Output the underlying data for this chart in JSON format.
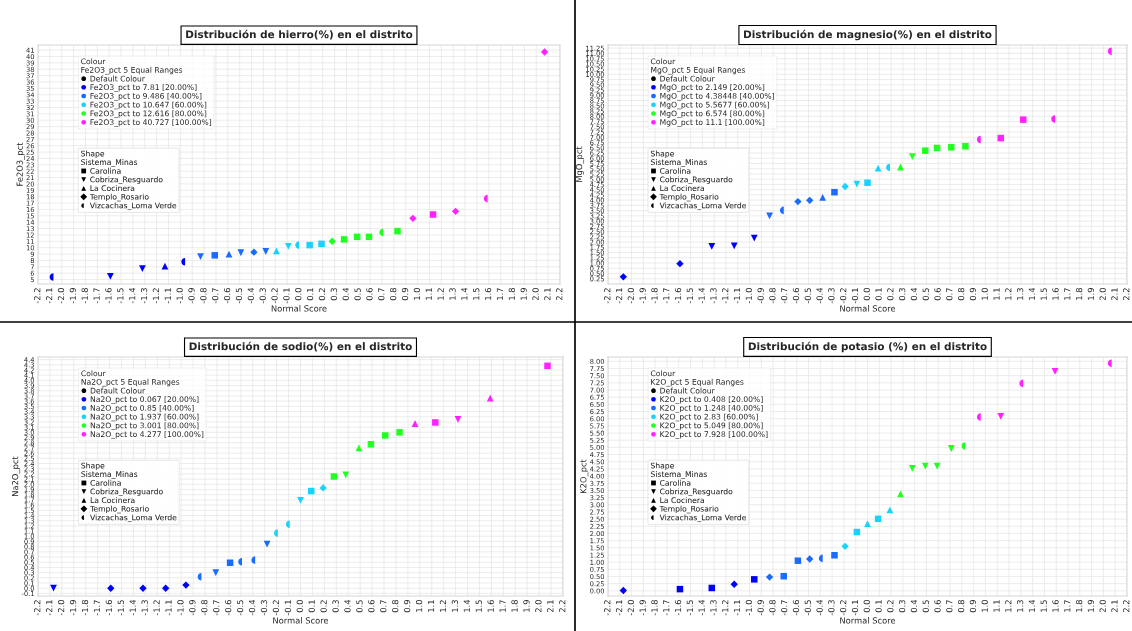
{
  "chart_data": [
    {
      "type": "scatter",
      "title": "Distribución de hierro(%) en el distrito",
      "xlabel": "Normal Score",
      "ylabel": "Fe2O3_pct",
      "annotations": [
        "Colour",
        "Fe2O3_pct 5 Equal Ranges",
        "Default Colour",
        "Shape",
        "Sistema_Minas",
        "Carolina",
        "Cobriza_Resguardo",
        "La Cocinera",
        "Templo_Rosario",
        "Vizcachas_Loma Verde"
      ],
      "xlim": [
        -2.2,
        2.2
      ],
      "xticks": [
        -2.2,
        -2.1,
        {
          "value": -2,
          "label": "-2.0"
        },
        -1.9,
        -1.8,
        -1.7,
        -1.6,
        -1.5,
        -1.4,
        -1.3,
        -1.2,
        -1.1,
        {
          "value": -1,
          "label": "-1.0"
        },
        -0.9,
        -0.8,
        -0.7,
        -0.6,
        -0.5,
        -0.4,
        -0.3,
        -0.2,
        -0.1,
        {
          "value": 0,
          "label": "0.0"
        },
        0.1,
        0.2,
        0.3,
        0.4,
        0.5,
        0.6,
        0.7,
        0.8,
        0.9,
        {
          "value": 1,
          "label": "1.0"
        },
        1.1,
        1.2,
        1.3,
        1.4,
        1.5,
        1.6,
        1.7,
        1.8,
        1.9,
        {
          "value": 2,
          "label": "2.0"
        },
        2.1,
        2.2
      ],
      "ylim": [
        4.3,
        41.8
      ],
      "yticks": [
        5,
        6,
        7,
        8,
        9,
        10,
        11,
        12,
        13,
        14,
        15,
        16,
        17,
        18,
        19,
        20,
        21,
        22,
        23,
        24,
        25,
        26,
        27,
        28,
        29,
        30,
        31,
        32,
        33,
        34,
        35,
        36,
        37,
        38,
        39,
        40,
        41
      ],
      "grid": true,
      "legend": "top left",
      "series": [
        {
          "name": "Fe2O3_pct to 7.81 [20.00%]",
          "color": "#0000ff",
          "marker": "triangle_down",
          "x": [
            -1.59,
            -1.32
          ],
          "values": [
            5.5,
            6.7
          ]
        },
        {
          "color": "#0000ff",
          "marker": "triangle",
          "x": [
            -1.13
          ],
          "values": [
            7.1
          ]
        },
        {
          "color": "#0000ff",
          "marker": "half_circle",
          "x": [
            -2.07,
            -0.96
          ],
          "values": [
            5.4,
            7.8
          ]
        },
        {
          "name": "Fe2O3_pct to 9.486 [40.00%]",
          "color": "#1a6cff",
          "marker": "square",
          "x": [
            -0.71
          ],
          "values": [
            8.8
          ]
        },
        {
          "color": "#1a6cff",
          "marker": "triangle_down",
          "x": [
            -0.83,
            -0.49,
            -0.28
          ],
          "values": [
            8.6,
            9.2,
            9.4
          ]
        },
        {
          "color": "#1a6cff",
          "marker": "triangle",
          "x": [
            -0.59
          ],
          "values": [
            9.0
          ]
        },
        {
          "color": "#1a6cff",
          "marker": "diamond",
          "x": [
            -0.38
          ],
          "values": [
            9.3
          ]
        },
        {
          "name": "Fe2O3_pct to 10.647 [60.00%]",
          "color": "#19d3ff",
          "marker": "square",
          "x": [
            0.09,
            0.19
          ],
          "values": [
            10.4,
            10.6
          ]
        },
        {
          "color": "#19d3ff",
          "marker": "triangle_down",
          "x": [
            -0.09
          ],
          "values": [
            10.2
          ]
        },
        {
          "color": "#19d3ff",
          "marker": "triangle",
          "x": [
            -0.19
          ],
          "values": [
            9.5
          ]
        },
        {
          "color": "#19d3ff",
          "marker": "half_circle",
          "x": [
            0.0
          ],
          "values": [
            10.4
          ]
        },
        {
          "name": "Fe2O3_pct to 12.616 [80.00%]",
          "color": "#22ff22",
          "marker": "square",
          "x": [
            0.38,
            0.49,
            0.59,
            0.83
          ],
          "values": [
            11.3,
            11.7,
            11.7,
            12.6
          ]
        },
        {
          "color": "#22ff22",
          "marker": "diamond",
          "x": [
            0.28
          ],
          "values": [
            11.0
          ]
        },
        {
          "color": "#22ff22",
          "marker": "half_circle",
          "x": [
            0.71
          ],
          "values": [
            12.4
          ]
        },
        {
          "name": "Fe2O3_pct to 40.727 [100.00%]",
          "color": "#ff22ff",
          "marker": "square",
          "x": [
            1.13
          ],
          "values": [
            15.2
          ]
        },
        {
          "color": "#ff22ff",
          "marker": "diamond",
          "x": [
            0.96,
            1.32,
            2.07
          ],
          "values": [
            14.6,
            15.7,
            40.7
          ]
        },
        {
          "color": "#ff22ff",
          "marker": "half_circle",
          "x": [
            1.59
          ],
          "values": [
            17.7
          ]
        }
      ]
    },
    {
      "type": "scatter",
      "title": "Distribución de magnesio(%) en el distrito",
      "xlabel": "Normal Score",
      "ylabel": "MgO_pct",
      "annotations": [
        "Colour",
        "MgO_pct 5 Equal Ranges",
        "Default Colour",
        "Shape",
        "Sistema_Minas",
        "Carolina",
        "Cobriza_Resguardo",
        "La Cocinera",
        "Templo_Rosario",
        "Vizcachas_Loma Verde"
      ],
      "xlim": [
        -2.2,
        2.2
      ],
      "xticks": [
        -2.2,
        -2.1,
        {
          "value": -2,
          "label": "-2.0"
        },
        -1.9,
        -1.8,
        -1.7,
        -1.6,
        -1.5,
        -1.4,
        -1.3,
        -1.2,
        -1.1,
        {
          "value": -1,
          "label": "-1.0"
        },
        -0.9,
        -0.8,
        -0.7,
        -0.6,
        -0.5,
        -0.4,
        -0.3,
        -0.2,
        -0.1,
        {
          "value": 0,
          "label": "0.0"
        },
        0.1,
        0.2,
        0.3,
        0.4,
        0.5,
        0.6,
        0.7,
        0.8,
        0.9,
        {
          "value": 1,
          "label": "1.0"
        },
        1.1,
        1.2,
        1.3,
        1.4,
        1.5,
        1.6,
        1.7,
        1.8,
        1.9,
        {
          "value": 2,
          "label": "2.0"
        },
        2.1,
        2.2
      ],
      "ylim": [
        0.0,
        11.4
      ],
      "yticks": [
        0.25,
        {
          "value": 0.5,
          "label": "0.50"
        },
        0.75,
        {
          "value": 1,
          "label": "1.00"
        },
        1.25,
        {
          "value": 1.5,
          "label": "1.50"
        },
        1.75,
        {
          "value": 2,
          "label": "2.00"
        },
        2.25,
        {
          "value": 2.5,
          "label": "2.50"
        },
        2.75,
        {
          "value": 3,
          "label": "3.00"
        },
        3.25,
        {
          "value": 3.5,
          "label": "3.50"
        },
        3.75,
        {
          "value": 4,
          "label": "4.00"
        },
        4.25,
        {
          "value": 4.5,
          "label": "4.50"
        },
        4.75,
        {
          "value": 5,
          "label": "5.00"
        },
        5.25,
        {
          "value": 5.5,
          "label": "5.50"
        },
        5.75,
        {
          "value": 6,
          "label": "6.00"
        },
        6.25,
        {
          "value": 6.5,
          "label": "6.50"
        },
        6.75,
        {
          "value": 7,
          "label": "7.00"
        },
        7.25,
        {
          "value": 7.5,
          "label": "7.50"
        },
        7.75,
        {
          "value": 8,
          "label": "8.00"
        },
        8.25,
        {
          "value": 8.5,
          "label": "8.50"
        },
        8.75,
        {
          "value": 9,
          "label": "9.00"
        },
        9.25,
        {
          "value": 9.5,
          "label": "9.50"
        },
        9.75,
        {
          "value": 10,
          "label": "10.00"
        },
        10.25,
        {
          "value": 10.5,
          "label": "10.50"
        },
        10.75,
        {
          "value": 11,
          "label": "11.00"
        },
        11.25
      ],
      "grid": true,
      "legend": "top left",
      "series": [
        {
          "name": "MgO_pct to 2.149 [20.00%]",
          "color": "#0000ff",
          "marker": "triangle_down",
          "x": [
            -1.32,
            -1.13,
            -0.96
          ],
          "values": [
            1.79,
            1.82,
            2.19
          ]
        },
        {
          "color": "#0000ff",
          "marker": "diamond",
          "x": [
            -2.07,
            -1.59
          ],
          "values": [
            0.34,
            0.97
          ]
        },
        {
          "name": "MgO_pct to 4.38448 [40.00%]",
          "color": "#1a6cff",
          "marker": "square",
          "x": [
            -0.28
          ],
          "values": [
            4.38
          ]
        },
        {
          "color": "#1a6cff",
          "marker": "triangle_down",
          "x": [
            -0.83
          ],
          "values": [
            3.25
          ]
        },
        {
          "color": "#1a6cff",
          "marker": "triangle",
          "x": [
            -0.38
          ],
          "values": [
            4.13
          ]
        },
        {
          "color": "#1a6cff",
          "marker": "diamond",
          "x": [
            -0.59,
            -0.49
          ],
          "values": [
            3.93,
            3.99
          ]
        },
        {
          "color": "#1a6cff",
          "marker": "half_circle",
          "x": [
            -0.71
          ],
          "values": [
            3.51
          ]
        },
        {
          "name": "MgO_pct to 5.5677 [60.00%]",
          "color": "#19d3ff",
          "marker": "square",
          "x": [
            0.0
          ],
          "values": [
            4.83
          ]
        },
        {
          "color": "#19d3ff",
          "marker": "triangle_down",
          "x": [
            -0.09
          ],
          "values": [
            4.76
          ]
        },
        {
          "color": "#19d3ff",
          "marker": "triangle",
          "x": [
            0.09
          ],
          "values": [
            5.53
          ]
        },
        {
          "color": "#19d3ff",
          "marker": "diamond",
          "x": [
            -0.19
          ],
          "values": [
            4.65
          ]
        },
        {
          "color": "#19d3ff",
          "marker": "half_circle",
          "x": [
            0.19
          ],
          "values": [
            5.56
          ]
        },
        {
          "name": "MgO_pct to 6.574 [80.00%]",
          "color": "#22ff22",
          "marker": "square",
          "x": [
            0.49,
            0.59,
            0.71,
            0.83
          ],
          "values": [
            6.36,
            6.49,
            6.52,
            6.57
          ]
        },
        {
          "color": "#22ff22",
          "marker": "triangle_down",
          "x": [
            0.38
          ],
          "values": [
            6.08
          ]
        },
        {
          "color": "#22ff22",
          "marker": "triangle",
          "x": [
            0.28
          ],
          "values": [
            5.58
          ]
        },
        {
          "name": "MgO_pct to 11.1 [100.00%]",
          "color": "#ff22ff",
          "marker": "square",
          "x": [
            1.13,
            1.32
          ],
          "values": [
            6.96,
            7.84
          ]
        },
        {
          "color": "#ff22ff",
          "marker": "half_circle",
          "x": [
            0.96,
            1.59,
            2.07
          ],
          "values": [
            6.89,
            7.87,
            11.1
          ]
        }
      ]
    },
    {
      "type": "scatter",
      "title": "Distribución de sodio(%) en el distrito",
      "xlabel": "Normal Score",
      "ylabel": "Na2O_pct",
      "annotations": [
        "Colour",
        "Na2O_pct 5 Equal Ranges",
        "Default Colour",
        "Shape",
        "Sistema_Minas",
        "Carolina",
        "Cobriza_Resguardo",
        "La Cocinera",
        "Templo_Rosario",
        "Vizcachas_Loma Verde"
      ],
      "xlim": [
        -2.2,
        2.2
      ],
      "xticks": [
        -2.2,
        -2.1,
        {
          "value": -2,
          "label": "-2.0"
        },
        -1.9,
        -1.8,
        -1.7,
        -1.6,
        -1.5,
        -1.4,
        -1.3,
        -1.2,
        -1.1,
        {
          "value": -1,
          "label": "-1.0"
        },
        -0.9,
        -0.8,
        -0.7,
        -0.6,
        -0.5,
        -0.4,
        -0.3,
        -0.2,
        -0.1,
        {
          "value": 0,
          "label": "0.0"
        },
        0.1,
        0.2,
        0.3,
        0.4,
        0.5,
        0.6,
        0.7,
        0.8,
        0.9,
        {
          "value": 1,
          "label": "1.0"
        },
        1.1,
        1.2,
        1.3,
        1.4,
        1.5,
        1.6,
        1.7,
        1.8,
        1.9,
        {
          "value": 2,
          "label": "2.0"
        },
        2.1,
        2.2
      ],
      "ylim": [
        -0.15,
        4.45
      ],
      "yticks": [
        -0.1,
        {
          "value": 0,
          "label": "0.0"
        },
        0.1,
        0.2,
        0.3,
        0.4,
        0.5,
        0.6,
        0.7,
        0.8,
        0.9,
        {
          "value": 1,
          "label": "1.0"
        },
        1.1,
        1.2,
        1.3,
        1.4,
        1.5,
        1.6,
        1.7,
        1.8,
        1.9,
        {
          "value": 2,
          "label": "2.0"
        },
        2.1,
        2.2,
        2.3,
        2.4,
        2.5,
        2.6,
        2.7,
        2.8,
        2.9,
        {
          "value": 3,
          "label": "3.0"
        },
        3.1,
        3.2,
        3.3,
        3.4,
        3.5,
        3.6,
        3.7,
        3.8,
        3.9,
        {
          "value": 4,
          "label": "4.0"
        },
        4.1,
        4.2,
        4.3,
        4.4
      ],
      "grid": true,
      "legend": "top left",
      "series": [
        {
          "name": "Na2O_pct to 0.067 [20.00%]",
          "color": "#0000ff",
          "marker": "triangle_down",
          "x": [
            -2.07
          ],
          "values": [
            0.0
          ]
        },
        {
          "color": "#0000ff",
          "marker": "diamond",
          "x": [
            -1.59,
            -1.32,
            -1.13,
            -0.96
          ],
          "values": [
            0.0,
            0.0,
            0.0,
            0.06
          ]
        },
        {
          "name": "Na2O_pct to 0.85 [40.00%]",
          "color": "#1a6cff",
          "marker": "square",
          "x": [
            -0.59
          ],
          "values": [
            0.49
          ]
        },
        {
          "color": "#1a6cff",
          "marker": "triangle_down",
          "x": [
            -0.71,
            -0.28
          ],
          "values": [
            0.3,
            0.85
          ]
        },
        {
          "color": "#1a6cff",
          "marker": "half_circle",
          "x": [
            -0.83,
            -0.49,
            -0.38
          ],
          "values": [
            0.22,
            0.51,
            0.54
          ]
        },
        {
          "name": "Na2O_pct to 1.937 [60.00%]",
          "color": "#19d3ff",
          "marker": "square",
          "x": [
            0.09
          ],
          "values": [
            1.87
          ]
        },
        {
          "color": "#19d3ff",
          "marker": "triangle_down",
          "x": [
            0.0
          ],
          "values": [
            1.69
          ]
        },
        {
          "color": "#19d3ff",
          "marker": "diamond",
          "x": [
            0.19
          ],
          "values": [
            1.93
          ]
        },
        {
          "color": "#19d3ff",
          "marker": "half_circle",
          "x": [
            -0.19,
            -0.09
          ],
          "values": [
            1.06,
            1.23
          ]
        },
        {
          "name": "Na2O_pct to 3.001 [80.00%]",
          "color": "#22ff22",
          "marker": "square",
          "x": [
            0.28,
            0.59,
            0.71,
            0.83
          ],
          "values": [
            2.15,
            2.77,
            2.94,
            3.0
          ]
        },
        {
          "color": "#22ff22",
          "marker": "triangle_down",
          "x": [
            0.38
          ],
          "values": [
            2.18
          ]
        },
        {
          "color": "#22ff22",
          "marker": "triangle",
          "x": [
            0.49
          ],
          "values": [
            2.7
          ]
        },
        {
          "name": "Na2O_pct to 4.277 [100.00%]",
          "color": "#ff22ff",
          "marker": "square",
          "x": [
            1.13,
            2.07
          ],
          "values": [
            3.19,
            4.28
          ]
        },
        {
          "color": "#ff22ff",
          "marker": "triangle_down",
          "x": [
            1.32
          ],
          "values": [
            3.25
          ]
        },
        {
          "color": "#ff22ff",
          "marker": "triangle",
          "x": [
            0.96,
            1.59
          ],
          "values": [
            3.17,
            3.66
          ]
        }
      ]
    },
    {
      "type": "scatter",
      "title": "Distribución de potasio (%) en el distrito",
      "xlabel": "Normal Score",
      "ylabel": "K2O_pct",
      "annotations": [
        "Colour",
        "K2O_pct 5 Equal Ranges",
        "Default Colour",
        "Shape",
        "Sistema_Minas",
        "Carolina",
        "Cobriza_Resguardo",
        "La Cocinera",
        "Templo_Rosario",
        "Vizcachas_Loma Verde"
      ],
      "xlim": [
        -2.2,
        2.2
      ],
      "xticks": [
        -2.2,
        -2.1,
        {
          "value": -2,
          "label": "-2.0"
        },
        -1.9,
        -1.8,
        -1.7,
        -1.6,
        -1.5,
        -1.4,
        -1.3,
        -1.2,
        -1.1,
        {
          "value": -1,
          "label": "-1.0"
        },
        -0.9,
        -0.8,
        -0.7,
        -0.6,
        -0.5,
        -0.4,
        -0.3,
        -0.2,
        -0.1,
        {
          "value": 0,
          "label": "0.0"
        },
        0.1,
        0.2,
        0.3,
        0.4,
        0.5,
        0.6,
        0.7,
        0.8,
        0.9,
        {
          "value": 1,
          "label": "1.0"
        },
        1.1,
        1.2,
        1.3,
        1.4,
        1.5,
        1.6,
        1.7,
        1.8,
        1.9,
        {
          "value": 2,
          "label": "2.0"
        },
        2.1,
        2.2
      ],
      "ylim": [
        -0.18,
        8.15
      ],
      "yticks": [
        {
          "value": 0,
          "label": "0.00"
        },
        0.25,
        {
          "value": 0.5,
          "label": "0.50"
        },
        0.75,
        {
          "value": 1,
          "label": "1.00"
        },
        1.25,
        {
          "value": 1.5,
          "label": "1.50"
        },
        1.75,
        {
          "value": 2,
          "label": "2.00"
        },
        2.25,
        {
          "value": 2.5,
          "label": "2.50"
        },
        2.75,
        {
          "value": 3,
          "label": "3.00"
        },
        3.25,
        {
          "value": 3.5,
          "label": "3.50"
        },
        3.75,
        {
          "value": 4,
          "label": "4.00"
        },
        4.25,
        {
          "value": 4.5,
          "label": "4.50"
        },
        4.75,
        {
          "value": 5,
          "label": "5.00"
        },
        5.25,
        {
          "value": 5.5,
          "label": "5.50"
        },
        5.75,
        {
          "value": 6,
          "label": "6.00"
        },
        6.25,
        {
          "value": 6.5,
          "label": "6.50"
        },
        6.75,
        {
          "value": 7,
          "label": "7.00"
        },
        7.25,
        {
          "value": 7.5,
          "label": "7.50"
        },
        7.75,
        {
          "value": 8,
          "label": "8.00"
        }
      ],
      "grid": true,
      "legend": "top left",
      "series": [
        {
          "name": "K2O_pct to 0.408 [20.00%]",
          "color": "#0000ff",
          "marker": "square",
          "x": [
            -1.59,
            -1.32,
            -0.96
          ],
          "values": [
            0.06,
            0.1,
            0.4
          ]
        },
        {
          "color": "#0000ff",
          "marker": "diamond",
          "x": [
            -2.07,
            -1.13
          ],
          "values": [
            0.01,
            0.23
          ]
        },
        {
          "name": "K2O_pct to 1.248 [40.00%]",
          "color": "#1a6cff",
          "marker": "square",
          "x": [
            -0.71,
            -0.59,
            -0.28
          ],
          "values": [
            0.51,
            1.05,
            1.24
          ]
        },
        {
          "color": "#1a6cff",
          "marker": "diamond",
          "x": [
            -0.83,
            -0.49
          ],
          "values": [
            0.48,
            1.11
          ]
        },
        {
          "color": "#1a6cff",
          "marker": "half_circle",
          "x": [
            -0.38
          ],
          "values": [
            1.13
          ]
        },
        {
          "name": "K2O_pct to 2.83 [60.00%]",
          "color": "#19d3ff",
          "marker": "square",
          "x": [
            -0.09,
            0.09
          ],
          "values": [
            2.05,
            2.51
          ]
        },
        {
          "color": "#19d3ff",
          "marker": "triangle",
          "x": [
            0.0,
            0.19
          ],
          "values": [
            2.34,
            2.82
          ]
        },
        {
          "color": "#19d3ff",
          "marker": "diamond",
          "x": [
            -0.19
          ],
          "values": [
            1.55
          ]
        },
        {
          "name": "K2O_pct to 5.049 [80.00%]",
          "color": "#22ff22",
          "marker": "triangle_down",
          "x": [
            0.38,
            0.49,
            0.59,
            0.71
          ],
          "values": [
            4.27,
            4.35,
            4.35,
            4.96
          ]
        },
        {
          "color": "#22ff22",
          "marker": "triangle",
          "x": [
            0.28
          ],
          "values": [
            3.38
          ]
        },
        {
          "color": "#22ff22",
          "marker": "half_circle",
          "x": [
            0.83
          ],
          "values": [
            5.05
          ]
        },
        {
          "name": "K2O_pct to 7.928 [100.00%]",
          "color": "#ff22ff",
          "marker": "triangle_down",
          "x": [
            1.13,
            1.59
          ],
          "values": [
            6.08,
            7.65
          ]
        },
        {
          "color": "#ff22ff",
          "marker": "half_circle",
          "x": [
            0.96,
            1.32,
            2.07
          ],
          "values": [
            6.06,
            7.23,
            7.93
          ]
        }
      ]
    }
  ]
}
